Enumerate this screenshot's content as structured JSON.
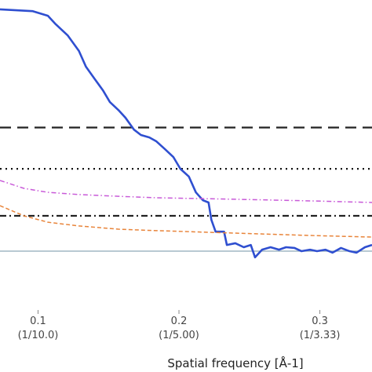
{
  "chart_data": {
    "type": "line",
    "xlabel": "Spatial frequency [Å-1]",
    "xlim": [
      0.073,
      0.337
    ],
    "ylim": [
      -0.238,
      1.016
    ],
    "xticks": [
      0.1,
      0.2,
      0.3
    ],
    "xtick_sublabels": [
      "(1/10.0)",
      "(1/5.00)",
      "(1/3.33)"
    ],
    "reference_lines": [
      {
        "value": 0.5,
        "style": "dashed",
        "color": "#222222"
      },
      {
        "value": 0.333,
        "style": "dotted",
        "color": "#111111"
      },
      {
        "value": 0.143,
        "style": "dashdot",
        "color": "#222222"
      },
      {
        "value": 0,
        "style": "solid",
        "color": "#8fa9b8"
      }
    ],
    "series": [
      {
        "color": "#2f4fd0",
        "style": "solid",
        "x": [
          0.073,
          0.096,
          0.107,
          0.112,
          0.121,
          0.129,
          0.134,
          0.14,
          0.146,
          0.151,
          0.157,
          0.162,
          0.168,
          0.173,
          0.179,
          0.184,
          0.19,
          0.196,
          0.201,
          0.207,
          0.212,
          0.217,
          0.221,
          0.223,
          0.226,
          0.232,
          0.234,
          0.24,
          0.246,
          0.251,
          0.254,
          0.259,
          0.265,
          0.271,
          0.276,
          0.282,
          0.287,
          0.293,
          0.298,
          0.304,
          0.309,
          0.315,
          0.321,
          0.326,
          0.332,
          0.337
        ],
        "values": [
          0.978,
          0.971,
          0.952,
          0.921,
          0.873,
          0.81,
          0.746,
          0.698,
          0.651,
          0.603,
          0.571,
          0.54,
          0.492,
          0.47,
          0.46,
          0.444,
          0.413,
          0.381,
          0.333,
          0.302,
          0.238,
          0.206,
          0.197,
          0.127,
          0.079,
          0.079,
          0.025,
          0.032,
          0.016,
          0.025,
          -0.025,
          0.006,
          0.016,
          0.006,
          0.016,
          0.013,
          0,
          0.006,
          0,
          0.006,
          -0.006,
          0.013,
          0,
          -0.006,
          0.016,
          0.025
        ]
      },
      {
        "color": "#c85ad8",
        "style": "dashdot",
        "x": [
          0.073,
          0.09,
          0.107,
          0.129,
          0.157,
          0.184,
          0.24,
          0.296,
          0.337
        ],
        "values": [
          0.286,
          0.254,
          0.238,
          0.229,
          0.222,
          0.216,
          0.21,
          0.203,
          0.197
        ]
      },
      {
        "color": "#e8843a",
        "style": "dashed",
        "x": [
          0.073,
          0.09,
          0.107,
          0.129,
          0.157,
          0.184,
          0.24,
          0.296,
          0.337
        ],
        "values": [
          0.184,
          0.143,
          0.117,
          0.102,
          0.089,
          0.083,
          0.073,
          0.063,
          0.057
        ]
      }
    ]
  }
}
